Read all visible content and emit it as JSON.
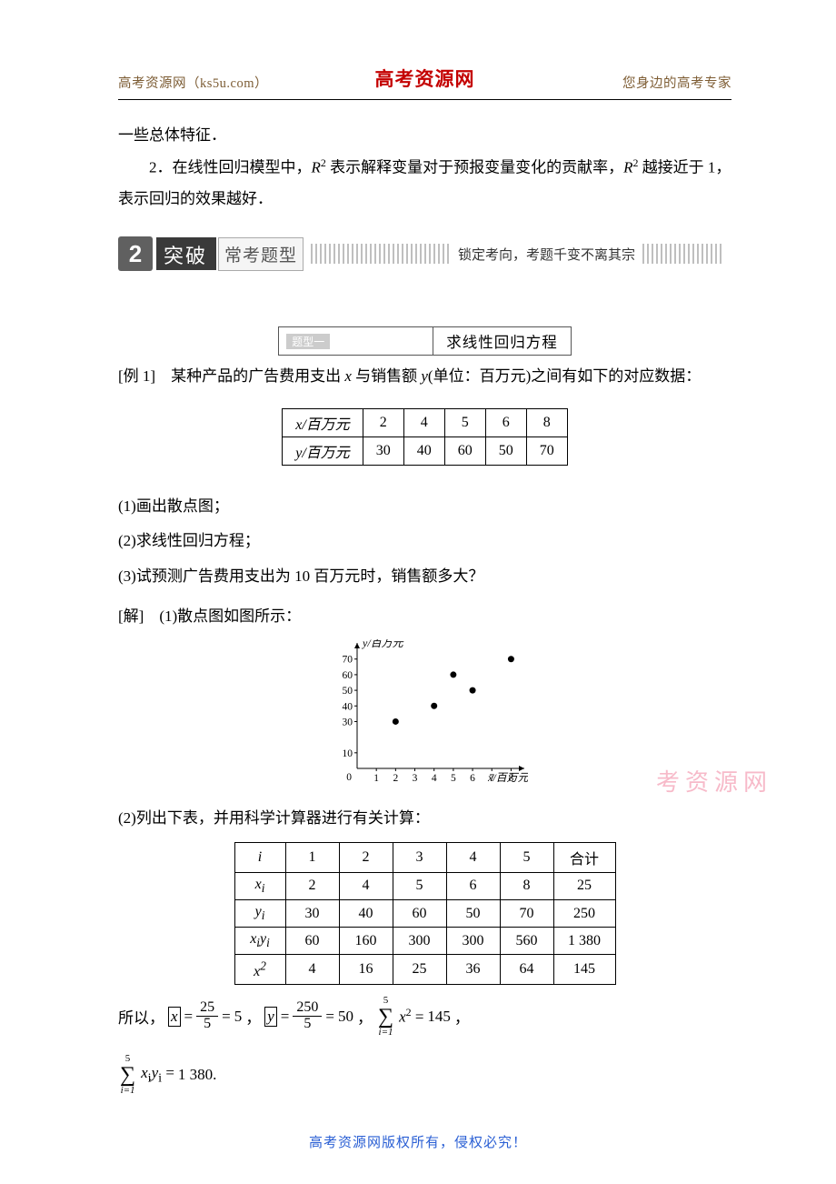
{
  "header": {
    "left": "高考资源网（ks5u.com）",
    "center": "高考资源网",
    "right": "您身边的高考专家"
  },
  "intro": {
    "line1": "一些总体特征．",
    "line2_pre": "　　2．在线性回归模型中，",
    "line2_r1": "R",
    "line2_mid1": " 表示解释变量对于预报变量变化的贡献率，",
    "line2_r2": "R",
    "line2_mid2": " 越接近于 1，",
    "line2_end": "表示回归的效果越好．"
  },
  "banner": {
    "num": "2",
    "label": "突破",
    "sub": "常考题型",
    "tag": "锁定考向，考题千变不离其宗"
  },
  "section_title": "求线性回归方程",
  "section_tag": "题型一",
  "example": {
    "label": "[例 1]",
    "stem_a": "　某种产品的广告费用支出 ",
    "stem_x": "x",
    "stem_b": " 与销售额 ",
    "stem_y": "y",
    "stem_c": "(单位：百万元)之间有如下的对应数据："
  },
  "table1": {
    "row_x_label": "x/百万元",
    "row_y_label": "y/百万元",
    "x": [
      "2",
      "4",
      "5",
      "6",
      "8"
    ],
    "y": [
      "30",
      "40",
      "60",
      "50",
      "70"
    ]
  },
  "questions": {
    "q1": "(1)画出散点图；",
    "q2": "(2)求线性回归方程；",
    "q3": "(3)试预测广告费用支出为 10 百万元时，销售额多大？"
  },
  "solution_lead": "[解]　(1)散点图如图所示：",
  "scatter": {
    "type": "scatter",
    "xlabel": "x/百万元",
    "ylabel": "y/百万元",
    "xlim": [
      0,
      8.5
    ],
    "ylim": [
      0,
      78
    ],
    "xticks": [
      1,
      2,
      3,
      4,
      5,
      6,
      7,
      8
    ],
    "yticks": [
      10,
      30,
      40,
      50,
      60,
      70
    ],
    "points": [
      [
        2,
        30
      ],
      [
        4,
        40
      ],
      [
        5,
        60
      ],
      [
        6,
        50
      ],
      [
        8,
        70
      ]
    ],
    "marker_color": "#000000",
    "marker_size": 3.5,
    "axis_color": "#000000",
    "background": "#ffffff",
    "axis_weight": 1,
    "label_fontsize": 12,
    "tick_fontsize": 11.5
  },
  "part2_lead": "(2)列出下表，并用科学计算器进行有关计算：",
  "table2": {
    "col_i": "i",
    "cols": [
      "1",
      "2",
      "3",
      "4",
      "5"
    ],
    "col_sum": "合计",
    "rows": [
      {
        "h": "xᵢ",
        "label_html": "x<sub>i</sub>",
        "v": [
          "2",
          "4",
          "5",
          "6",
          "8"
        ],
        "sum": "25"
      },
      {
        "h": "yᵢ",
        "label_html": "y<sub>i</sub>",
        "v": [
          "30",
          "40",
          "60",
          "50",
          "70"
        ],
        "sum": "250"
      },
      {
        "h": "xᵢyᵢ",
        "label_html": "x<sub>i</sub>y<sub>i</sub>",
        "v": [
          "60",
          "160",
          "300",
          "300",
          "560"
        ],
        "sum": "1 380"
      },
      {
        "h": "x²",
        "label_html": "x<sup>2</sup>",
        "v": [
          "4",
          "16",
          "25",
          "36",
          "64"
        ],
        "sum": "145"
      }
    ]
  },
  "math1": {
    "prefix": "所以，",
    "xbar_num": "25",
    "xbar_den": "5",
    "xbar_res": "5",
    "ybar_num": "250",
    "ybar_den": "5",
    "ybar_res": "50",
    "sum_upper": "5",
    "sum_lower": "i=1",
    "sum_body": "x",
    "sum_exp": "2",
    "sum_res": "145",
    "tail": "，"
  },
  "math2": {
    "sum_upper": "5",
    "sum_lower": "i=1",
    "body_x": "x",
    "body_y": "y",
    "res": "1 380."
  },
  "watermark": "考资源网",
  "footer": "高考资源网版权所有，侵权必究！"
}
